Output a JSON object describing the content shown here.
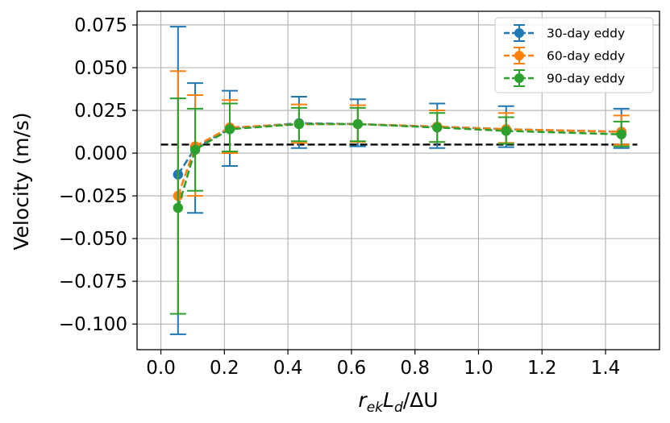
{
  "chart_data": {
    "type": "line",
    "title": "",
    "xlabel": "r_ek L_d / ΔU",
    "xlabel_parts": {
      "r": "r",
      "ek": "ek",
      "L": "L",
      "d": "d",
      "tail": "/ΔU"
    },
    "ylabel": "Velocity (m/s)",
    "xlim": [
      -0.075,
      1.57
    ],
    "ylim": [
      -0.115,
      0.083
    ],
    "xticks": [
      0.0,
      0.2,
      0.4,
      0.6,
      0.8,
      1.0,
      1.2,
      1.4
    ],
    "xtick_labels": [
      "0.0",
      "0.2",
      "0.4",
      "0.6",
      "0.8",
      "1.0",
      "1.2",
      "1.4"
    ],
    "yticks": [
      0.075,
      0.05,
      0.025,
      0.0,
      -0.025,
      -0.05,
      -0.075,
      -0.1
    ],
    "ytick_labels": [
      "0.075",
      "0.050",
      "0.025",
      "0.000",
      "−0.025",
      "−0.050",
      "−0.075",
      "−0.100"
    ],
    "grid": true,
    "legend_position": "top-right",
    "reference_line": {
      "y": 0.005,
      "x_range": [
        0.0,
        1.5
      ],
      "color": "#000000",
      "style": "dashed"
    },
    "series": [
      {
        "name": "30-day eddy",
        "color": "#1f77b4",
        "x": [
          0.054,
          0.108,
          0.217,
          0.435,
          0.62,
          0.87,
          1.087,
          1.45
        ],
        "y": [
          -0.0125,
          0.003,
          0.0145,
          0.0175,
          0.017,
          0.0155,
          0.014,
          0.0125
        ],
        "yerr_low": [
          0.0935,
          0.038,
          0.022,
          0.0145,
          0.013,
          0.0125,
          0.0105,
          0.0095
        ],
        "yerr_high": [
          0.0865,
          0.038,
          0.022,
          0.0155,
          0.0145,
          0.0135,
          0.0135,
          0.0135
        ]
      },
      {
        "name": "60-day eddy",
        "color": "#ff7f0e",
        "x": [
          0.054,
          0.108,
          0.217,
          0.435,
          0.62,
          0.87,
          1.087,
          1.45
        ],
        "y": [
          -0.025,
          0.004,
          0.015,
          0.017,
          0.017,
          0.0155,
          0.014,
          0.0125
        ],
        "yerr_low": [
          0.069,
          0.029,
          0.015,
          0.011,
          0.0105,
          0.009,
          0.008,
          0.0075
        ],
        "yerr_high": [
          0.073,
          0.03,
          0.016,
          0.0115,
          0.011,
          0.0095,
          0.0095,
          0.0095
        ]
      },
      {
        "name": "90-day eddy",
        "color": "#2ca02c",
        "x": [
          0.054,
          0.108,
          0.217,
          0.435,
          0.62,
          0.87,
          1.087,
          1.45
        ],
        "y": [
          -0.032,
          0.002,
          0.014,
          0.017,
          0.017,
          0.015,
          0.013,
          0.011
        ],
        "yerr_low": [
          0.062,
          0.024,
          0.013,
          0.01,
          0.01,
          0.0085,
          0.0075,
          0.007
        ],
        "yerr_high": [
          0.064,
          0.024,
          0.015,
          0.0095,
          0.0095,
          0.0085,
          0.008,
          0.0075
        ]
      }
    ]
  }
}
